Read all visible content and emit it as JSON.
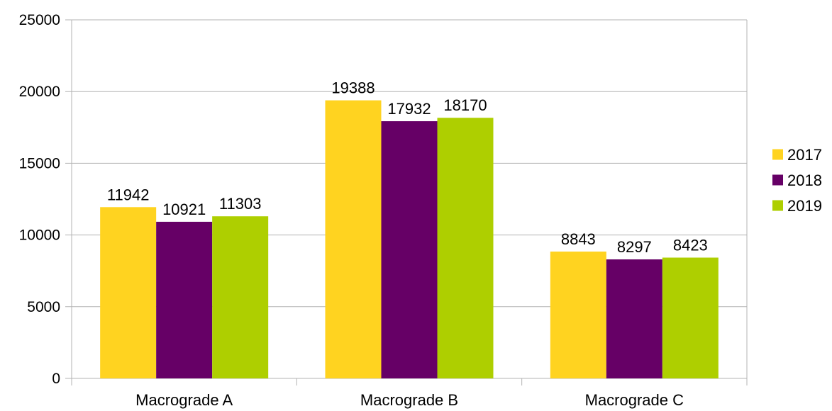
{
  "chart_data": {
    "type": "bar",
    "categories": [
      "Macrograde A",
      "Macrograde B",
      "Macrograde C"
    ],
    "series": [
      {
        "name": "2017",
        "values": [
          11942,
          19388,
          8843
        ]
      },
      {
        "name": "2018",
        "values": [
          10921,
          17932,
          8297
        ]
      },
      {
        "name": "2019",
        "values": [
          11303,
          18170,
          8423
        ]
      }
    ],
    "colors": [
      "#ffd320",
      "#660066",
      "#aecf00"
    ],
    "ylim": [
      0,
      25000
    ],
    "yticks": [
      0,
      5000,
      10000,
      15000,
      20000,
      25000
    ],
    "title": "",
    "xlabel": "",
    "ylabel": "",
    "grid": "horizontal",
    "legend": "right",
    "data_labels": true
  }
}
